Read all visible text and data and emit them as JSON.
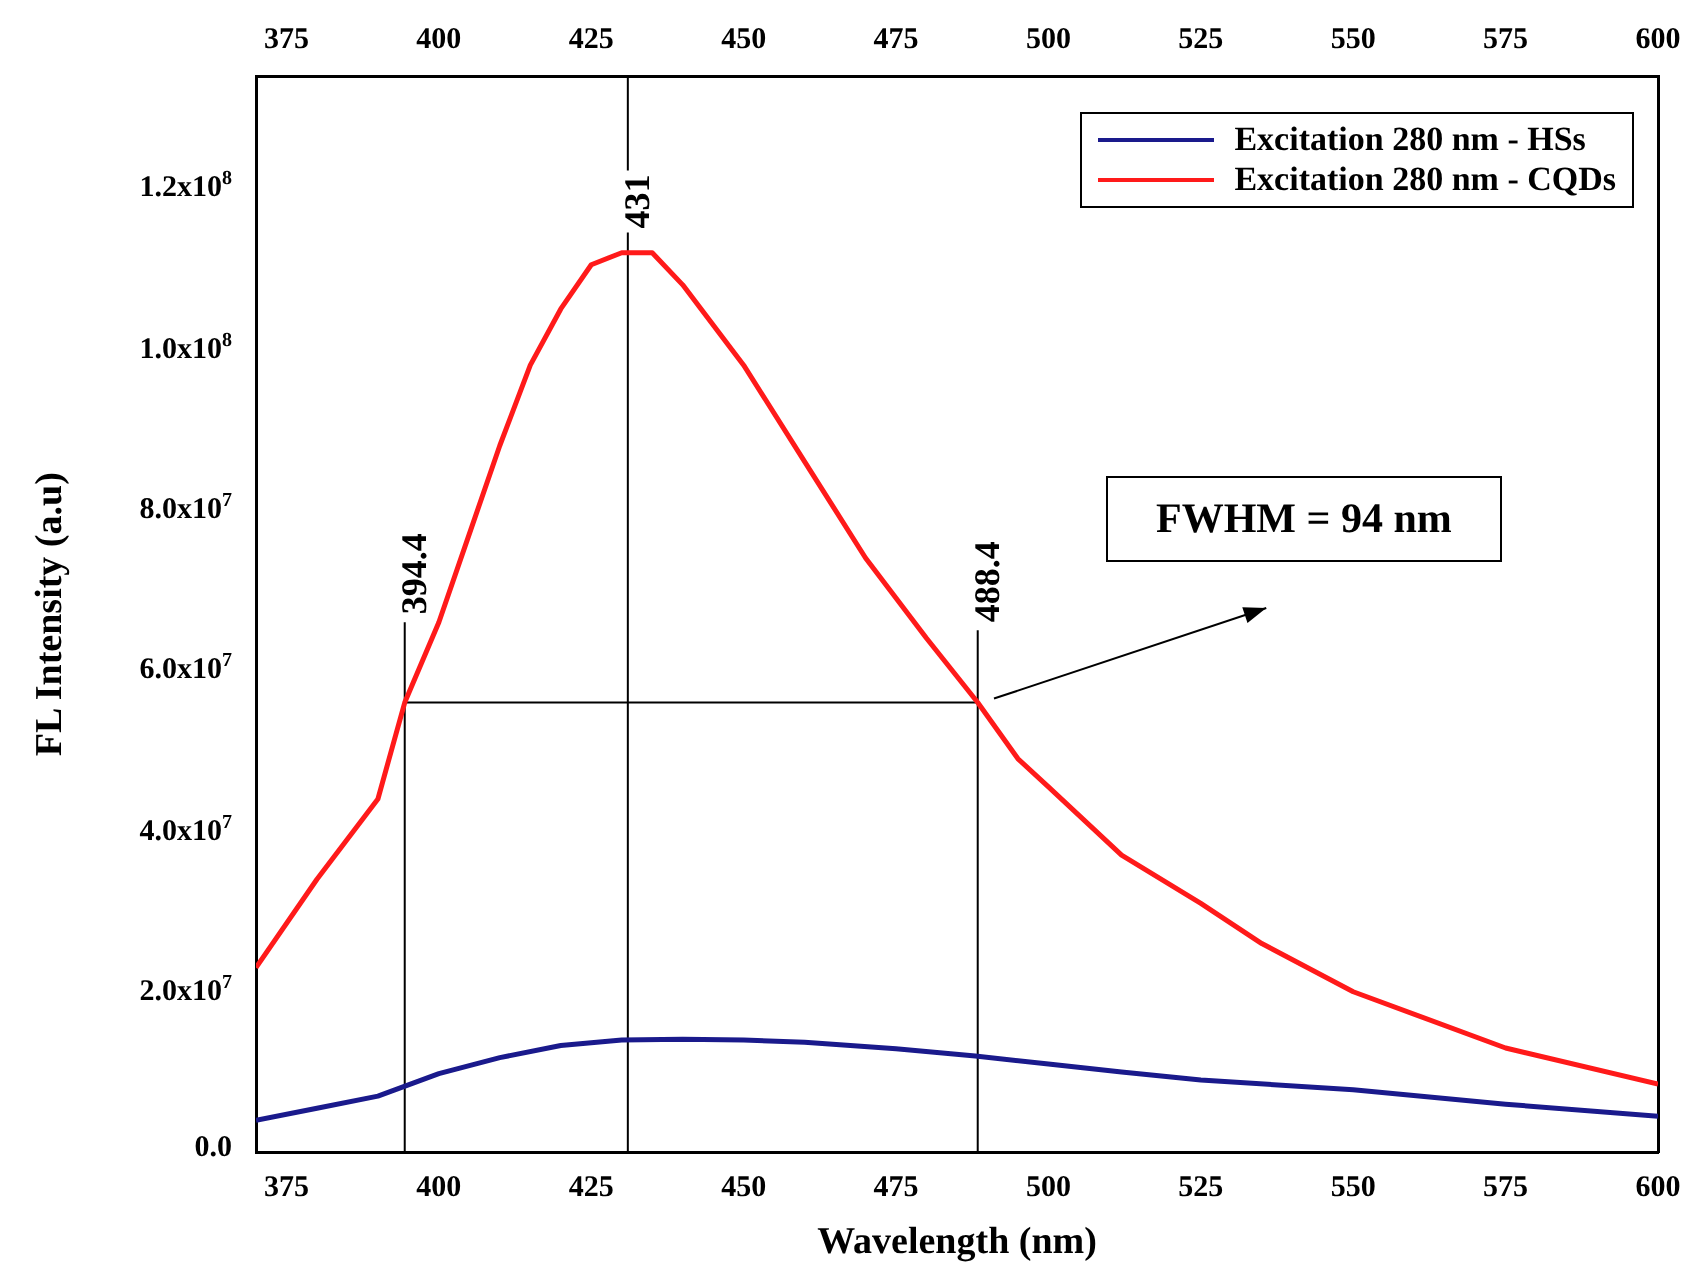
{
  "chart_data": {
    "type": "line",
    "xlabel": "Wavelength (nm)",
    "ylabel": "FL Intensity (a.u)",
    "xlim": [
      370,
      600
    ],
    "xticks": [
      375,
      400,
      425,
      450,
      475,
      500,
      525,
      550,
      575,
      600
    ],
    "x2lim": [
      370,
      600
    ],
    "x2ticks": [
      375,
      400,
      425,
      450,
      475,
      500,
      525,
      550,
      575,
      600
    ],
    "ylim": [
      0,
      134000000
    ],
    "yticks": [
      {
        "value": 0,
        "label": "0.0"
      },
      {
        "value": 20000000,
        "label": "2.0x10$^{7}$"
      },
      {
        "value": 40000000,
        "label": "4.0x10$^{7}$"
      },
      {
        "value": 60000000,
        "label": "6.0x10$^{7}$"
      },
      {
        "value": 80000000,
        "label": "8.0x10$^{7}$"
      },
      {
        "value": 100000000,
        "label": "1.0x10$^{8}$"
      },
      {
        "value": 120000000,
        "label": "1.2x10$^{8}$"
      }
    ],
    "legend": "top right",
    "grid": false,
    "marker": "none",
    "line_style": "solid",
    "series": [
      {
        "name": "Excitation 280 nm - HSs",
        "color": "#1a1a8c",
        "x": [
          370,
          380,
          390,
          400,
          410,
          420,
          430,
          440,
          450,
          460,
          475,
          488,
          500,
          512,
          525,
          550,
          575,
          600
        ],
        "values": [
          4000000,
          5500000,
          7000000,
          9800000,
          11800000,
          13300000,
          14000000,
          14100000,
          14000000,
          13700000,
          12900000,
          12000000,
          11000000,
          10000000,
          9000000,
          7800000,
          6000000,
          4500000
        ]
      },
      {
        "name": "Excitation 280 nm - CQDs",
        "color": "#ff1a1a",
        "x": [
          370,
          380,
          390,
          394.4,
          400,
          405,
          410,
          415,
          420,
          425,
          430,
          435,
          440,
          450,
          460,
          470,
          480,
          488.4,
          495,
          500,
          512,
          525,
          535,
          550,
          575,
          600
        ],
        "values": [
          23000000,
          34000000,
          44000000,
          56000000,
          66000000,
          77000000,
          88000000,
          98000000,
          105000000,
          110500000,
          112000000,
          112000000,
          108000000,
          98000000,
          86000000,
          74000000,
          64000000,
          56000000,
          49000000,
          45500000,
          37000000,
          31000000,
          26000000,
          20000000,
          13000000,
          8500000
        ]
      },
      {
        "color": "#000000",
        "x": [
          394.4,
          488.4
        ],
        "values": [
          56000000,
          56000000
        ]
      },
      {
        "color": "#000000",
        "x": [
          394.4,
          394.4
        ],
        "values": [
          0,
          66000000
        ]
      },
      {
        "color": "#000000",
        "x": [
          431,
          431
        ],
        "values": [
          0,
          134000000
        ]
      },
      {
        "color": "#000000",
        "x": [
          488.4,
          488.4
        ],
        "values": [
          0,
          65000000
        ]
      }
    ],
    "annotations": [
      {
        "text": "394.4",
        "x": 394.4,
        "y": 67000000
      },
      {
        "text": "431",
        "x": 431,
        "y": 115000000
      },
      {
        "text": "488.4",
        "x": 488.4,
        "y": 66000000
      },
      "FWHM = 94 nm"
    ]
  }
}
